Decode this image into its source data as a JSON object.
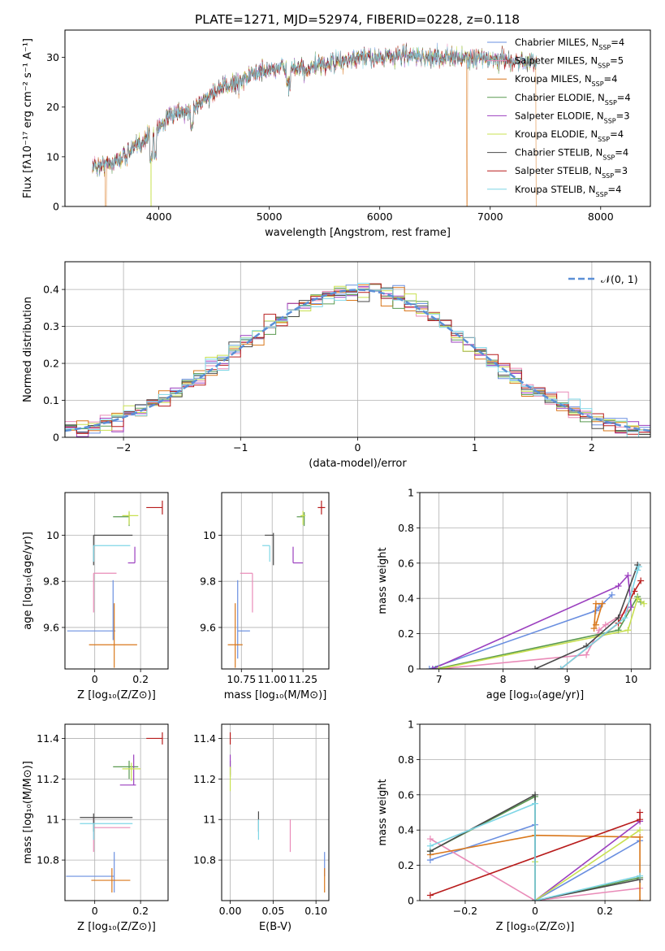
{
  "title": "PLATE=1271, MJD=52974, FIBERID=0228, z=0.118",
  "models": [
    {
      "name": "Chabrier MILES, N",
      "sub": "SSP",
      "tail": "=4",
      "color": "#6a8fe0"
    },
    {
      "name": "Salpeter MILES, N",
      "sub": "SSP",
      "tail": "=5",
      "color": "#e98bb8"
    },
    {
      "name": "Kroupa MILES, N",
      "sub": "SSP",
      "tail": "=4",
      "color": "#d9771b"
    },
    {
      "name": "Chabrier ELODIE, N",
      "sub": "SSP",
      "tail": "=4",
      "color": "#5a9a50"
    },
    {
      "name": "Salpeter ELODIE, N",
      "sub": "SSP",
      "tail": "=3",
      "color": "#9b3fbf"
    },
    {
      "name": "Kroupa ELODIE, N",
      "sub": "SSP",
      "tail": "=4",
      "color": "#c8e050"
    },
    {
      "name": "Chabrier STELIB, N",
      "sub": "SSP",
      "tail": "=4",
      "color": "#4a4a4a"
    },
    {
      "name": "Salpeter STELIB, N",
      "sub": "SSP",
      "tail": "=3",
      "color": "#b81c1c"
    },
    {
      "name": "Kroupa STELIB, N",
      "sub": "SSP",
      "tail": "=4",
      "color": "#7fd6e6"
    }
  ],
  "chart_data": [
    {
      "id": "spectrum",
      "type": "line",
      "xlabel": "wavelength [Angstrom, rest frame]",
      "ylabel": "Flux [fλ10⁻¹⁷ erg cm⁻² s⁻¹ A⁻¹]",
      "xlim": [
        3150,
        8450
      ],
      "ylim": [
        0,
        35.5
      ],
      "xticks": [
        4000,
        5000,
        6000,
        7000,
        8000
      ],
      "yticks": [
        0,
        10,
        20,
        30
      ],
      "grid": false,
      "legend": "top-right",
      "continuum_points": [
        [
          3400,
          8
        ],
        [
          3600,
          9
        ],
        [
          3800,
          12
        ],
        [
          3950,
          15
        ],
        [
          4100,
          18
        ],
        [
          4300,
          19.5
        ],
        [
          4500,
          23
        ],
        [
          4700,
          25
        ],
        [
          4900,
          27
        ],
        [
          5100,
          28
        ],
        [
          5300,
          27.5
        ],
        [
          5600,
          29
        ],
        [
          5900,
          30
        ],
        [
          6200,
          30.5
        ],
        [
          6500,
          30
        ],
        [
          6800,
          30
        ],
        [
          7100,
          29.5
        ],
        [
          7420,
          29
        ]
      ],
      "dropouts": [
        {
          "x": 3520,
          "series": 2
        },
        {
          "x": 3930,
          "series": 5
        },
        {
          "x": 6790,
          "series": 2
        },
        {
          "x": 7420,
          "series": 2
        }
      ]
    },
    {
      "id": "residuals",
      "type": "histogram",
      "xlabel": "(data-model)/error",
      "ylabel": "Normed distribution",
      "xlim": [
        -2.5,
        2.5
      ],
      "ylim": [
        0,
        0.475
      ],
      "xticks": [
        -2,
        -1,
        0,
        1,
        2
      ],
      "yticks": [
        0.0,
        0.1,
        0.2,
        0.3,
        0.4
      ],
      "grid": true,
      "legend": "top-right",
      "reference": {
        "name": "𝒩(0, 1)",
        "mean": 0,
        "sigma": 1,
        "color": "#5b8fd6"
      },
      "bin_width": 0.1
    },
    {
      "id": "age_vs_Z",
      "type": "scatter",
      "xlabel": "Z [log₁₀(Z/Z⊙)]",
      "ylabel": "age  [log₁₀(age/yr)]",
      "xlim": [
        -0.13,
        0.32
      ],
      "ylim": [
        9.42,
        10.185
      ],
      "xticks": [
        0.0,
        0.2
      ],
      "yticks": [
        9.6,
        9.8,
        10.0
      ],
      "grid": true,
      "points": [
        {
          "x": 0.08,
          "y": 9.585,
          "xerr": [
            0.2,
            0.01
          ],
          "yerr": [
            0.04,
            0.22
          ],
          "series": 0
        },
        {
          "x": -0.005,
          "y": 9.835,
          "xerr": [
            0.0,
            0.1
          ],
          "yerr": [
            0.17,
            0.0
          ],
          "series": 1
        },
        {
          "x": 0.085,
          "y": 9.525,
          "xerr": [
            0.11,
            0.1
          ],
          "yerr": [
            0.1,
            0.18
          ],
          "series": 2
        },
        {
          "x": 0.15,
          "y": 10.08,
          "xerr": [
            0.07,
            0.0
          ],
          "yerr": [
            0.04,
            0.02
          ],
          "series": 3
        },
        {
          "x": 0.175,
          "y": 9.88,
          "xerr": [
            0.03,
            0.0
          ],
          "yerr": [
            0.0,
            0.07
          ],
          "series": 4
        },
        {
          "x": 0.15,
          "y": 10.085,
          "xerr": [
            0.03,
            0.04
          ],
          "yerr": [
            0.04,
            0.02
          ],
          "series": 5
        },
        {
          "x": -0.005,
          "y": 10.0,
          "xerr": [
            0.0,
            0.17
          ],
          "yerr": [
            0.13,
            0.0
          ],
          "series": 6
        },
        {
          "x": 0.295,
          "y": 10.12,
          "xerr": [
            0.07,
            0.0
          ],
          "yerr": [
            0.03,
            0.03
          ],
          "series": 7
        },
        {
          "x": -0.005,
          "y": 9.955,
          "xerr": [
            0.0,
            0.16
          ],
          "yerr": [
            0.07,
            0.0
          ],
          "series": 8
        }
      ]
    },
    {
      "id": "age_vs_mass",
      "type": "scatter",
      "xlabel": "mass [log₁₀(M/M⊙)]",
      "ylabel": "",
      "xlim": [
        10.59,
        11.46
      ],
      "ylim": [
        9.42,
        10.185
      ],
      "xticks": [
        10.75,
        11.0,
        11.25
      ],
      "xticklabels": [
        "10.75",
        "11.00",
        "11.25"
      ],
      "yticks": [
        9.6,
        9.8,
        10.0
      ],
      "grid": true,
      "points": [
        {
          "x": 10.72,
          "y": 9.585,
          "xerr": [
            0.0,
            0.1
          ],
          "yerr": [
            0.12,
            0.22
          ],
          "series": 0
        },
        {
          "x": 10.84,
          "y": 9.835,
          "xerr": [
            0.1,
            0.0
          ],
          "yerr": [
            0.17,
            0.0
          ],
          "series": 1
        },
        {
          "x": 10.7,
          "y": 9.525,
          "xerr": [
            0.06,
            0.06
          ],
          "yerr": [
            0.1,
            0.18
          ],
          "series": 2
        },
        {
          "x": 11.26,
          "y": 10.08,
          "xerr": [
            0.06,
            0.0
          ],
          "yerr": [
            0.04,
            0.02
          ],
          "series": 3
        },
        {
          "x": 11.17,
          "y": 9.88,
          "xerr": [
            0.0,
            0.08
          ],
          "yerr": [
            0.0,
            0.07
          ],
          "series": 4
        },
        {
          "x": 11.25,
          "y": 10.085,
          "xerr": [
            0.02,
            0.02
          ],
          "yerr": [
            0.04,
            0.02
          ],
          "series": 5
        },
        {
          "x": 11.01,
          "y": 10.0,
          "xerr": [
            0.07,
            0.0
          ],
          "yerr": [
            0.13,
            0.01
          ],
          "series": 6
        },
        {
          "x": 11.4,
          "y": 10.12,
          "xerr": [
            0.03,
            0.03
          ],
          "yerr": [
            0.03,
            0.03
          ],
          "series": 7
        },
        {
          "x": 10.98,
          "y": 9.955,
          "xerr": [
            0.06,
            0.0
          ],
          "yerr": [
            0.07,
            0.0
          ],
          "series": 8
        }
      ]
    },
    {
      "id": "weight_vs_age",
      "type": "line",
      "xlabel": "age  [log₁₀(age/yr)]",
      "ylabel": "mass weight",
      "xlim": [
        6.7,
        10.3
      ],
      "ylim": [
        0,
        1
      ],
      "xticks": [
        7,
        8,
        9,
        10
      ],
      "yticks": [
        0.0,
        0.2,
        0.4,
        0.6,
        0.8,
        1.0
      ],
      "grid": true,
      "series": [
        {
          "s": 0,
          "points": [
            [
              6.85,
              0.0
            ],
            [
              9.45,
              0.33
            ],
            [
              9.5,
              0.35
            ],
            [
              9.7,
              0.42
            ]
          ]
        },
        {
          "s": 1,
          "points": [
            [
              7.0,
              0.0
            ],
            [
              9.3,
              0.08
            ],
            [
              9.5,
              0.22
            ],
            [
              9.6,
              0.25
            ],
            [
              9.95,
              0.33
            ]
          ]
        },
        {
          "s": 2,
          "points": [
            [
              9.42,
              0.23
            ],
            [
              9.45,
              0.37
            ],
            [
              9.55,
              0.37
            ],
            [
              9.45,
              0.25
            ]
          ]
        },
        {
          "s": 3,
          "points": [
            [
              6.95,
              0.0
            ],
            [
              9.8,
              0.22
            ],
            [
              10.1,
              0.41
            ],
            [
              10.15,
              0.38
            ]
          ]
        },
        {
          "s": 4,
          "points": [
            [
              6.9,
              0.0
            ],
            [
              9.8,
              0.47
            ],
            [
              9.95,
              0.53
            ],
            [
              10.0,
              0.35
            ]
          ]
        },
        {
          "s": 5,
          "points": [
            [
              7.0,
              0.0
            ],
            [
              9.95,
              0.22
            ],
            [
              10.1,
              0.4
            ],
            [
              10.2,
              0.37
            ]
          ]
        },
        {
          "s": 6,
          "points": [
            [
              8.5,
              0.0
            ],
            [
              9.3,
              0.13
            ],
            [
              9.8,
              0.29
            ],
            [
              10.1,
              0.59
            ]
          ]
        },
        {
          "s": 7,
          "points": [
            [
              8.9,
              0.0
            ],
            [
              9.8,
              0.26
            ],
            [
              10.05,
              0.44
            ],
            [
              10.15,
              0.5
            ]
          ]
        },
        {
          "s": 8,
          "points": [
            [
              8.9,
              0.0
            ],
            [
              9.9,
              0.29
            ],
            [
              10.1,
              0.56
            ],
            [
              10.12,
              0.58
            ]
          ]
        }
      ]
    },
    {
      "id": "mass_vs_Z",
      "type": "scatter",
      "xlabel": "Z [log₁₀(Z/Z⊙)]",
      "ylabel": "mass [log₁₀(M/M⊙)]",
      "xlim": [
        -0.13,
        0.32
      ],
      "ylim": [
        10.6,
        11.47
      ],
      "xticks": [
        0.0,
        0.2
      ],
      "yticks": [
        10.8,
        11.0,
        11.2,
        11.4
      ],
      "grid": true,
      "points": [
        {
          "x": 0.085,
          "y": 10.72,
          "xerr": [
            0.21,
            0.0
          ],
          "yerr": [
            0.08,
            0.12
          ],
          "series": 0
        },
        {
          "x": -0.005,
          "y": 10.96,
          "xerr": [
            0.0,
            0.16
          ],
          "yerr": [
            0.12,
            0.05
          ],
          "series": 1
        },
        {
          "x": 0.075,
          "y": 10.7,
          "xerr": [
            0.09,
            0.08
          ],
          "yerr": [
            0.06,
            0.06
          ],
          "series": 2
        },
        {
          "x": 0.15,
          "y": 11.26,
          "xerr": [
            0.07,
            0.04
          ],
          "yerr": [
            0.06,
            0.03
          ],
          "series": 3
        },
        {
          "x": 0.17,
          "y": 11.17,
          "xerr": [
            0.06,
            0.01
          ],
          "yerr": [
            0.0,
            0.15
          ],
          "series": 4
        },
        {
          "x": 0.16,
          "y": 11.25,
          "xerr": [
            0.04,
            0.04
          ],
          "yerr": [
            0.06,
            0.03
          ],
          "series": 5
        },
        {
          "x": -0.005,
          "y": 11.01,
          "xerr": [
            0.06,
            0.17
          ],
          "yerr": [
            0.07,
            0.02
          ],
          "series": 6
        },
        {
          "x": 0.295,
          "y": 11.4,
          "xerr": [
            0.07,
            0.0
          ],
          "yerr": [
            0.03,
            0.03
          ],
          "series": 7
        },
        {
          "x": -0.005,
          "y": 10.98,
          "xerr": [
            0.06,
            0.17
          ],
          "yerr": [
            0.08,
            0.0
          ],
          "series": 8
        }
      ]
    },
    {
      "id": "mass_vs_ebv",
      "type": "scatter",
      "xlabel": "E(B-V)",
      "ylabel": "",
      "xlim": [
        -0.01,
        0.115
      ],
      "ylim": [
        10.6,
        11.47
      ],
      "xticks": [
        0.0,
        0.05,
        0.1
      ],
      "xticklabels": [
        "0.00",
        "0.05",
        "0.10"
      ],
      "yticks": [
        10.8,
        11.0,
        11.2,
        11.4
      ],
      "grid": true,
      "points": [
        {
          "x": 0.11,
          "y": 10.78,
          "yerr": [
            0.06,
            0.06
          ],
          "series": 0
        },
        {
          "x": 0.07,
          "y": 10.92,
          "yerr": [
            0.08,
            0.08
          ],
          "series": 1
        },
        {
          "x": 0.11,
          "y": 10.7,
          "yerr": [
            0.06,
            0.06
          ],
          "series": 2
        },
        {
          "x": 0.0,
          "y": 11.25,
          "yerr": [
            0.04,
            0.04
          ],
          "series": 3
        },
        {
          "x": 0.0,
          "y": 11.27,
          "yerr": [
            0.05,
            0.05
          ],
          "series": 4
        },
        {
          "x": 0.0,
          "y": 11.2,
          "yerr": [
            0.06,
            0.06
          ],
          "series": 5
        },
        {
          "x": 0.033,
          "y": 10.99,
          "yerr": [
            0.05,
            0.05
          ],
          "series": 6
        },
        {
          "x": 0.0,
          "y": 11.4,
          "yerr": [
            0.03,
            0.03
          ],
          "series": 7
        },
        {
          "x": 0.033,
          "y": 10.95,
          "yerr": [
            0.05,
            0.05
          ],
          "series": 8
        }
      ]
    },
    {
      "id": "weight_vs_Z",
      "type": "line",
      "xlabel": "Z [log₁₀(Z/Z⊙)]",
      "ylabel": "mass weight",
      "xlim": [
        -0.33,
        0.33
      ],
      "ylim": [
        0,
        1
      ],
      "xticks": [
        -0.2,
        0.0,
        0.2
      ],
      "yticks": [
        0.0,
        0.2,
        0.4,
        0.6,
        0.8,
        1.0
      ],
      "grid": true,
      "series": [
        {
          "s": 0,
          "points": [
            [
              -0.3,
              0.23
            ],
            [
              0.0,
              0.43
            ],
            [
              0.0,
              0.0
            ],
            [
              0.3,
              0.34
            ]
          ]
        },
        {
          "s": 1,
          "points": [
            [
              -0.3,
              0.35
            ],
            [
              0.0,
              0.0
            ],
            [
              0.3,
              0.07
            ]
          ]
        },
        {
          "s": 2,
          "points": [
            [
              -0.3,
              0.26
            ],
            [
              0.0,
              0.37
            ],
            [
              0.3,
              0.36
            ],
            [
              0.3,
              0.0
            ]
          ]
        },
        {
          "s": 3,
          "points": [
            [
              -0.3,
              0.28
            ],
            [
              0.0,
              0.59
            ],
            [
              0.0,
              0.0
            ],
            [
              0.3,
              0.13
            ]
          ]
        },
        {
          "s": 4,
          "points": [
            [
              0.0,
              0.0
            ],
            [
              0.3,
              0.45
            ]
          ]
        },
        {
          "s": 5,
          "points": [
            [
              0.0,
              0.22
            ],
            [
              0.0,
              0.0
            ],
            [
              0.3,
              0.4
            ]
          ]
        },
        {
          "s": 6,
          "points": [
            [
              -0.3,
              0.28
            ],
            [
              0.0,
              0.6
            ],
            [
              0.0,
              0.0
            ],
            [
              0.3,
              0.12
            ]
          ]
        },
        {
          "s": 7,
          "points": [
            [
              -0.3,
              0.03
            ],
            [
              0.3,
              0.46
            ],
            [
              0.3,
              0.5
            ]
          ]
        },
        {
          "s": 8,
          "points": [
            [
              -0.3,
              0.31
            ],
            [
              0.0,
              0.55
            ],
            [
              0.0,
              0.0
            ],
            [
              0.3,
              0.14
            ]
          ]
        }
      ]
    }
  ]
}
